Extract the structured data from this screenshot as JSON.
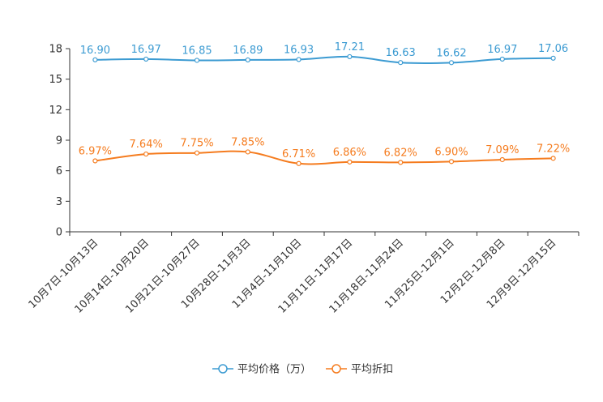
{
  "chart_data": {
    "type": "line",
    "title": "",
    "xlabel": "",
    "ylabel": "",
    "ylim": [
      0,
      18
    ],
    "yticks": [
      0,
      3,
      6,
      9,
      12,
      15,
      18
    ],
    "ytick_labels": [
      "0",
      "3",
      "6",
      "9",
      "12",
      "15",
      "18"
    ],
    "grid": false,
    "legend_position": "bottom-center",
    "categories": [
      "10月7日-10月13日",
      "10月14日-10月20日",
      "10月21日-10月27日",
      "10月28日-11月3日",
      "11月4日-11月10日",
      "11月11日-11月17日",
      "11月18日-11月24日",
      "11月25日-12月1日",
      "12月2日-12月8日",
      "12月9日-12月15日"
    ],
    "series": [
      {
        "name": "平均价格（万）",
        "color": "#3c9bd2",
        "values": [
          16.9,
          16.97,
          16.85,
          16.89,
          16.93,
          17.21,
          16.63,
          16.62,
          16.97,
          17.06
        ],
        "labels": [
          "16.90",
          "16.97",
          "16.85",
          "16.89",
          "16.93",
          "17.21",
          "16.63",
          "16.62",
          "16.97",
          "17.06"
        ]
      },
      {
        "name": "平均折扣",
        "color": "#f57c1f",
        "values": [
          6.97,
          7.64,
          7.75,
          7.85,
          6.71,
          6.86,
          6.82,
          6.9,
          7.09,
          7.22
        ],
        "labels": [
          "6.97%",
          "7.64%",
          "7.75%",
          "7.85%",
          "6.71%",
          "6.86%",
          "6.82%",
          "6.90%",
          "7.09%",
          "7.22%"
        ]
      }
    ]
  }
}
